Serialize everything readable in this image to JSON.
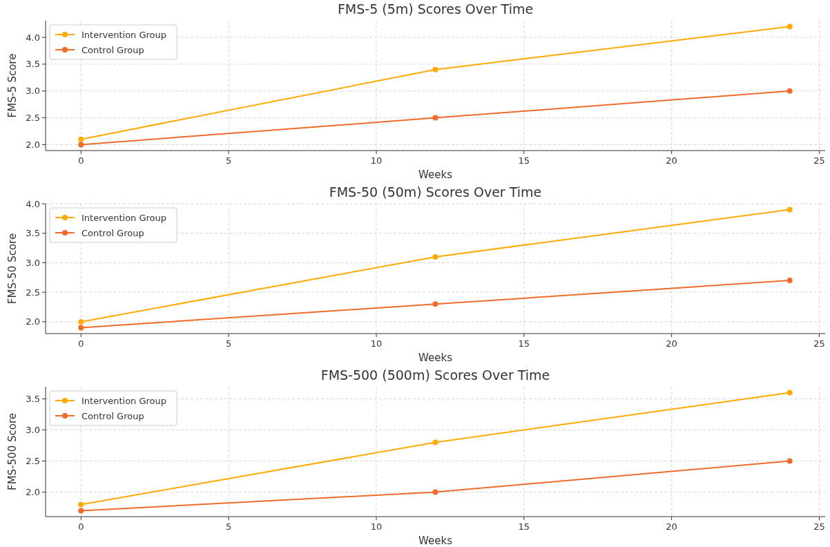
{
  "chart_data": [
    {
      "type": "line",
      "title": "FMS-5 (5m) Scores Over Time",
      "xlabel": "Weeks",
      "ylabel": "FMS-5 Score",
      "x": [
        0,
        12,
        24
      ],
      "series": [
        {
          "name": "Intervention Group",
          "color": "#ffaa00",
          "values": [
            2.1,
            3.4,
            4.2
          ]
        },
        {
          "name": "Control Group",
          "color": "#f06a2a",
          "values": [
            2.0,
            2.5,
            3.0
          ]
        }
      ],
      "xlim": [
        -1.2,
        25.2
      ],
      "xticks": [
        0,
        5,
        10,
        15,
        20,
        25
      ],
      "ylim": [
        1.89,
        4.31
      ],
      "yticks": [
        {
          "value": 2,
          "label": "2.0"
        },
        {
          "value": 2.5,
          "label": "2.5"
        },
        {
          "value": 3,
          "label": "3.0"
        },
        {
          "value": 3.5,
          "label": "3.5"
        },
        {
          "value": 4,
          "label": "4.0"
        }
      ],
      "grid": true,
      "legend": "top left",
      "marker": "circle",
      "line_style": "solid"
    },
    {
      "type": "line",
      "title": "FMS-50 (50m) Scores Over Time",
      "xlabel": "Weeks",
      "ylabel": "FMS-50 Score",
      "x": [
        0,
        12,
        24
      ],
      "series": [
        {
          "name": "Intervention Group",
          "color": "#ffaa00",
          "values": [
            2.0,
            3.1,
            3.9
          ]
        },
        {
          "name": "Control Group",
          "color": "#f06a2a",
          "values": [
            1.9,
            2.3,
            2.7
          ]
        }
      ],
      "xlim": [
        -1.2,
        25.2
      ],
      "xticks": [
        0,
        5,
        10,
        15,
        20,
        25
      ],
      "ylim": [
        1.8,
        4.0
      ],
      "yticks": [
        {
          "value": 2,
          "label": "2.0"
        },
        {
          "value": 2.5,
          "label": "2.5"
        },
        {
          "value": 3,
          "label": "3.0"
        },
        {
          "value": 3.5,
          "label": "3.5"
        },
        {
          "value": 4,
          "label": "4.0"
        }
      ],
      "grid": true,
      "legend": "top left",
      "marker": "circle",
      "line_style": "solid"
    },
    {
      "type": "line",
      "title": "FMS-500 (500m) Scores Over Time",
      "xlabel": "Weeks",
      "ylabel": "FMS-500 Score",
      "x": [
        0,
        12,
        24
      ],
      "series": [
        {
          "name": "Intervention Group",
          "color": "#ffaa00",
          "values": [
            1.8,
            2.8,
            3.6
          ]
        },
        {
          "name": "Control Group",
          "color": "#f06a2a",
          "values": [
            1.7,
            2.0,
            2.5
          ]
        }
      ],
      "xlim": [
        -1.2,
        25.2
      ],
      "xticks": [
        0,
        5,
        10,
        15,
        20,
        25
      ],
      "ylim": [
        1.605,
        3.695
      ],
      "yticks": [
        {
          "value": 2,
          "label": "2.0"
        },
        {
          "value": 2.5,
          "label": "2.5"
        },
        {
          "value": 3,
          "label": "3.0"
        },
        {
          "value": 3.5,
          "label": "3.5"
        }
      ],
      "grid": true,
      "legend": "top left",
      "marker": "circle",
      "line_style": "solid"
    }
  ]
}
